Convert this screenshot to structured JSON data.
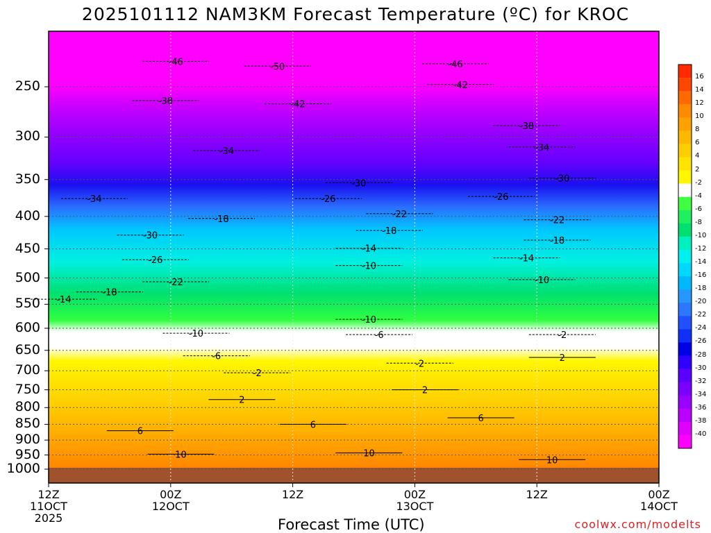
{
  "chart_data": {
    "type": "heatmap",
    "title": "2025101112 NAM3KM Forecast Temperature (ºC) for KROC",
    "xlabel": "Forecast Time (UTC)",
    "ylabel": "",
    "y_scale": "log",
    "y_ticks": [
      250,
      300,
      350,
      400,
      450,
      500,
      550,
      600,
      650,
      700,
      750,
      800,
      850,
      900,
      950,
      1000
    ],
    "x_ticks": [
      {
        "line1": "12Z",
        "line2": "11OCT",
        "line3": "2025"
      },
      {
        "line1": "00Z",
        "line2": "12OCT",
        "line3": ""
      },
      {
        "line1": "12Z",
        "line2": "",
        "line3": ""
      },
      {
        "line1": "00Z",
        "line2": "13OCT",
        "line3": ""
      },
      {
        "line1": "12Z",
        "line2": "",
        "line3": ""
      },
      {
        "line1": "00Z",
        "line2": "14OCT",
        "line3": ""
      }
    ],
    "x_hours": [
      0,
      12,
      24,
      36,
      48,
      60
    ],
    "colorbar": {
      "labels": [
        "16",
        "14",
        "12",
        "10",
        "8",
        "6",
        "4",
        "2",
        "-2",
        "-4",
        "-6",
        "-8",
        "-10",
        "-12",
        "-14",
        "-16",
        "-18",
        "-20",
        "-22",
        "-24",
        "-26",
        "-28",
        "-30",
        "-32",
        "-34",
        "-36",
        "-38",
        "-40"
      ],
      "colors": [
        "#ff4500",
        "#ff6a00",
        "#ff8c00",
        "#ffa200",
        "#ffb800",
        "#ffce00",
        "#ffe400",
        "#fff700",
        "#ffffff",
        "#40ff40",
        "#20f060",
        "#00e070",
        "#00f0c0",
        "#00f0f0",
        "#00d8ff",
        "#00b8ff",
        "#2896ff",
        "#2a78ff",
        "#2050ff",
        "#1030f8",
        "#0000e8",
        "#3000ff",
        "#5a00ff",
        "#7a00ff",
        "#9a00ff",
        "#bc00ff",
        "#e000ff",
        "#ff00ff"
      ]
    },
    "isotherm_labels": [
      {
        "text": "-46",
        "h": 12.5,
        "p": 228
      },
      {
        "text": "-50",
        "h": 22.5,
        "p": 232
      },
      {
        "text": "-46",
        "h": 40,
        "p": 230
      },
      {
        "text": "-42",
        "h": 40.5,
        "p": 248
      },
      {
        "text": "-42",
        "h": 24.5,
        "p": 266
      },
      {
        "text": "-38",
        "h": 11.5,
        "p": 263
      },
      {
        "text": "-38",
        "h": 47,
        "p": 288
      },
      {
        "text": "-34",
        "h": 17.5,
        "p": 315
      },
      {
        "text": "-34",
        "h": 48.5,
        "p": 311
      },
      {
        "text": "-30",
        "h": 30.5,
        "p": 354
      },
      {
        "text": "-30",
        "h": 50.5,
        "p": 348
      },
      {
        "text": "-34",
        "h": 4.5,
        "p": 375
      },
      {
        "text": "-26",
        "h": 27.5,
        "p": 375
      },
      {
        "text": "-26",
        "h": 44.5,
        "p": 372
      },
      {
        "text": "-22",
        "h": 34.5,
        "p": 396
      },
      {
        "text": "-22",
        "h": 50,
        "p": 405
      },
      {
        "text": "-18",
        "h": 17,
        "p": 403
      },
      {
        "text": "-18",
        "h": 33.5,
        "p": 421
      },
      {
        "text": "-18",
        "h": 50,
        "p": 436
      },
      {
        "text": "-30",
        "h": 10,
        "p": 428
      },
      {
        "text": "-26",
        "h": 10.5,
        "p": 468
      },
      {
        "text": "-14",
        "h": 31.5,
        "p": 449
      },
      {
        "text": "-14",
        "h": 47,
        "p": 465
      },
      {
        "text": "-10",
        "h": 31.5,
        "p": 478
      },
      {
        "text": "-10",
        "h": 48.5,
        "p": 503
      },
      {
        "text": "-22",
        "h": 12.5,
        "p": 507
      },
      {
        "text": "-18",
        "h": 6,
        "p": 526
      },
      {
        "text": "-14",
        "h": 1.5,
        "p": 540
      },
      {
        "text": "-10",
        "h": 31.5,
        "p": 581
      },
      {
        "text": "-10",
        "h": 14.5,
        "p": 611
      },
      {
        "text": "-6",
        "h": 32.5,
        "p": 614
      },
      {
        "text": "-6",
        "h": 16.5,
        "p": 663
      },
      {
        "text": "-2",
        "h": 36.5,
        "p": 681
      },
      {
        "text": "-2",
        "h": 20.5,
        "p": 705
      },
      {
        "text": "-2",
        "h": 50.5,
        "p": 614
      },
      {
        "text": "2",
        "h": 37,
        "p": 750
      },
      {
        "text": "2",
        "h": 19,
        "p": 777
      },
      {
        "text": "2",
        "h": 50.5,
        "p": 667
      },
      {
        "text": "6",
        "h": 26,
        "p": 850
      },
      {
        "text": "6",
        "h": 42.5,
        "p": 830
      },
      {
        "text": "6",
        "h": 9,
        "p": 870
      },
      {
        "text": "10",
        "h": 13,
        "p": 947
      },
      {
        "text": "10",
        "h": 31.5,
        "p": 943
      },
      {
        "text": "10",
        "h": 49.5,
        "p": 966
      }
    ]
  },
  "source_credit": "coolwx.com/modelts"
}
